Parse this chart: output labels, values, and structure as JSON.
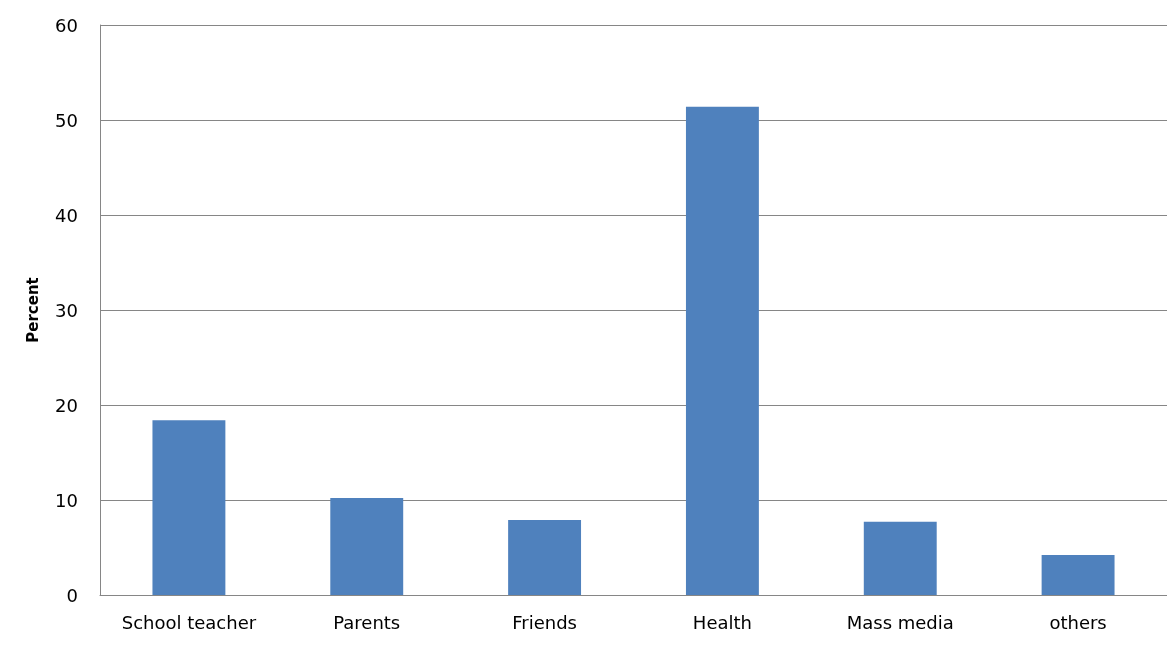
{
  "chart_data": {
    "type": "bar",
    "ylabel": "Percent",
    "categories": [
      "School teacher",
      "Parents",
      "Friends",
      "Health",
      "Mass media",
      "others"
    ],
    "values": [
      18.4,
      10.2,
      7.9,
      51.4,
      7.7,
      4.2
    ],
    "color": "#4f81bd",
    "ylim": [
      0,
      60
    ],
    "yticks": [
      0,
      10,
      20,
      30,
      40,
      50,
      60
    ],
    "grid": "y"
  }
}
